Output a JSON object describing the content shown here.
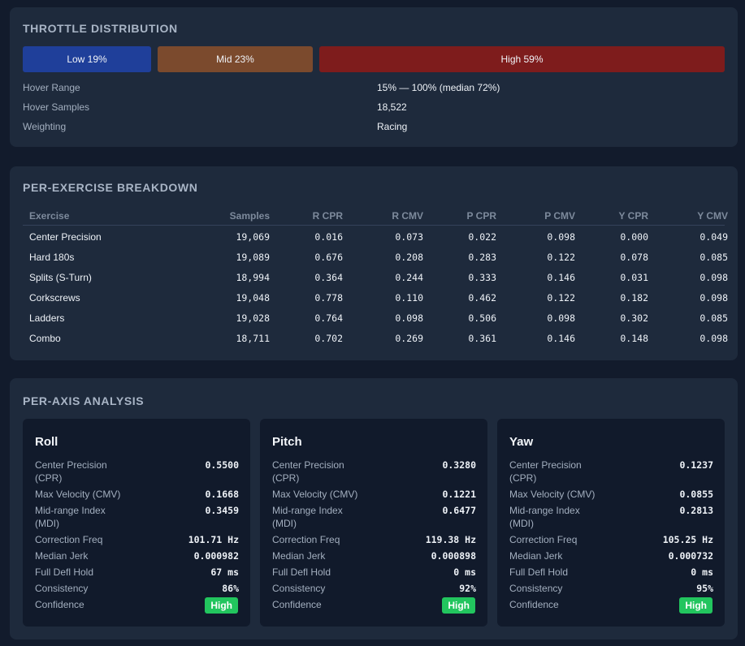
{
  "throttle": {
    "title": "THROTTLE DISTRIBUTION",
    "bars": [
      {
        "label": "Low 19%",
        "percent": 19,
        "color": "#1f3f9a"
      },
      {
        "label": "Mid 23%",
        "percent": 23,
        "color": "#7b4a2d"
      },
      {
        "label": "High 59%",
        "percent": 59,
        "color": "#7e1c1c"
      }
    ],
    "info": [
      {
        "label": "Hover Range",
        "value": "15% — 100% (median 72%)"
      },
      {
        "label": "Hover Samples",
        "value": "18,522"
      },
      {
        "label": "Weighting",
        "value": "Racing"
      }
    ]
  },
  "exercise": {
    "title": "PER-EXERCISE BREAKDOWN",
    "columns": [
      "Exercise",
      "Samples",
      "R CPR",
      "R CMV",
      "P CPR",
      "P CMV",
      "Y CPR",
      "Y CMV"
    ],
    "rows": [
      [
        "Center Precision",
        "19,069",
        "0.016",
        "0.073",
        "0.022",
        "0.098",
        "0.000",
        "0.049"
      ],
      [
        "Hard 180s",
        "19,089",
        "0.676",
        "0.208",
        "0.283",
        "0.122",
        "0.078",
        "0.085"
      ],
      [
        "Splits (S-Turn)",
        "18,994",
        "0.364",
        "0.244",
        "0.333",
        "0.146",
        "0.031",
        "0.098"
      ],
      [
        "Corkscrews",
        "19,048",
        "0.778",
        "0.110",
        "0.462",
        "0.122",
        "0.182",
        "0.098"
      ],
      [
        "Ladders",
        "19,028",
        "0.764",
        "0.098",
        "0.506",
        "0.098",
        "0.302",
        "0.085"
      ],
      [
        "Combo",
        "18,711",
        "0.702",
        "0.269",
        "0.361",
        "0.146",
        "0.148",
        "0.098"
      ]
    ]
  },
  "axis": {
    "title": "PER-AXIS ANALYSIS",
    "labels": {
      "cpr": "Center Precision (CPR)",
      "cmv": "Max Velocity (CMV)",
      "mdi": "Mid-range Index (MDI)",
      "freq": "Correction Freq",
      "jerk": "Median Jerk",
      "hold": "Full Defl Hold",
      "consistency": "Consistency",
      "confidence": "Confidence"
    },
    "cards": [
      {
        "name": "Roll",
        "cpr": "0.5500",
        "cmv": "0.1668",
        "mdi": "0.3459",
        "freq": "101.71 Hz",
        "jerk": "0.000982",
        "hold": "67 ms",
        "consistency": "86%",
        "confidence": "High"
      },
      {
        "name": "Pitch",
        "cpr": "0.3280",
        "cmv": "0.1221",
        "mdi": "0.6477",
        "freq": "119.38 Hz",
        "jerk": "0.000898",
        "hold": "0 ms",
        "consistency": "92%",
        "confidence": "High"
      },
      {
        "name": "Yaw",
        "cpr": "0.1237",
        "cmv": "0.0855",
        "mdi": "0.2813",
        "freq": "105.25 Hz",
        "jerk": "0.000732",
        "hold": "0 ms",
        "consistency": "95%",
        "confidence": "High"
      }
    ],
    "badge_color": "#22c55e"
  }
}
